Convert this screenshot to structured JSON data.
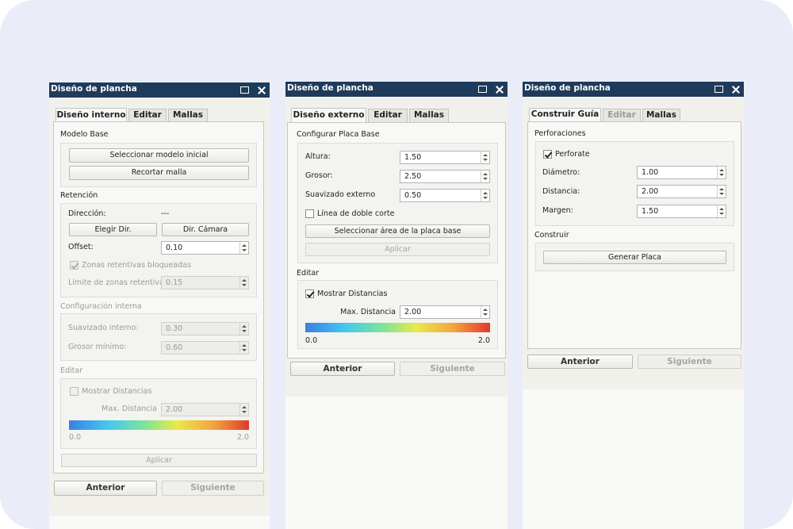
{
  "panels": [
    {
      "title": "Diseño de plancha",
      "tabs": [
        "Diseño interno",
        "Editar",
        "Mallas"
      ],
      "sections": [
        {
          "heading": "Modelo Base",
          "buttons": [
            "Seleccionar modelo inicial",
            "Recortar malla"
          ]
        },
        {
          "heading": "Retención",
          "fields": [
            {
              "label": "Dirección:",
              "value": "---"
            },
            {
              "label": "Offset:",
              "value": "0.10"
            },
            {
              "label": "Límite de zonas retentivas:",
              "value": "0.15"
            }
          ],
          "buttons": [
            "Elegir Dir.",
            "Dir. Cámara"
          ],
          "checkbox": "Zonas retentivas bloqueadas"
        },
        {
          "heading": "Configuración interna",
          "fields": [
            {
              "label": "Suavizado interno:",
              "value": "0.30"
            },
            {
              "label": "Grosor mínimo:",
              "value": "0.60"
            }
          ]
        },
        {
          "heading": "Editar",
          "checkbox": "Mostrar Distancias",
          "fields": [
            {
              "label": "Max. Distancia",
              "value": "2.00"
            }
          ],
          "scale": [
            "0.0",
            "2.0"
          ],
          "buttons": [
            "Aplicar"
          ]
        }
      ],
      "nav": [
        "Anterior",
        "Siguiente"
      ]
    },
    {
      "title": "Diseño de plancha",
      "tabs": [
        "Diseño externo",
        "Editar",
        "Mallas"
      ],
      "sections": [
        {
          "heading": "Configurar Placa Base",
          "fields": [
            {
              "label": "Altura:",
              "value": "1.50"
            },
            {
              "label": "Grosor:",
              "value": "2.50"
            },
            {
              "label": "Suavizado externo",
              "value": "0.50"
            }
          ],
          "checkbox": "Línea de doble corte",
          "buttons": [
            "Seleccionar área de la placa base",
            "Aplicar"
          ]
        },
        {
          "heading": "Editar",
          "checkbox": "Mostrar Distancias",
          "fields": [
            {
              "label": "Max. Distancia",
              "value": "2.00"
            }
          ],
          "scale": [
            "0.0",
            "2.0"
          ]
        }
      ],
      "nav": [
        "Anterior",
        "Siguiente"
      ]
    },
    {
      "title": "Diseño de plancha",
      "tabs": [
        "Construir Guía",
        "Editar",
        "Mallas"
      ],
      "sections": [
        {
          "heading": "Perforaciones",
          "checkbox": "Perforate",
          "fields": [
            {
              "label": "Diámetro:",
              "value": "1.00"
            },
            {
              "label": "Distancia:",
              "value": "2.00"
            },
            {
              "label": "Margen:",
              "value": "1.50"
            }
          ]
        },
        {
          "heading": "Construir",
          "buttons": [
            "Generar Placa"
          ]
        }
      ],
      "nav": [
        "Anterior",
        "Siguiente"
      ]
    }
  ]
}
